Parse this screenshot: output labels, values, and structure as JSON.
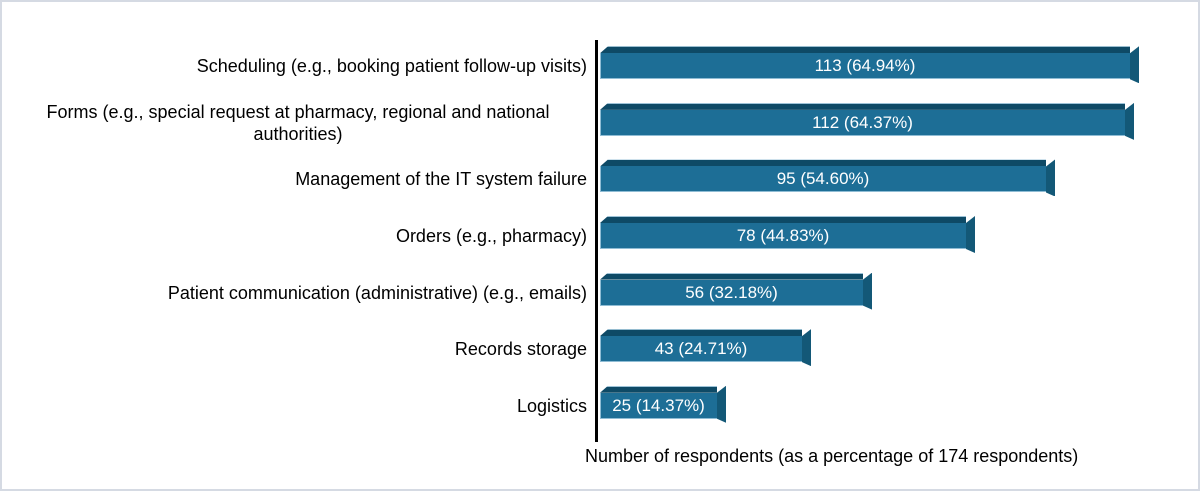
{
  "chart_data": {
    "type": "bar",
    "orientation": "horizontal",
    "title": "",
    "xlabel": "Number of respondents (as a percentage of 174 respondents)",
    "ylabel": "",
    "categories": [
      "Scheduling (e.g., booking patient follow-up visits)",
      "Forms (e.g., special request at pharmacy, regional and national authorities)",
      "Management of the IT system failure",
      "Orders (e.g., pharmacy)",
      "Patient communication (administrative) (e.g., emails)",
      "Records storage",
      "Logistics"
    ],
    "values": [
      113,
      112,
      95,
      78,
      56,
      43,
      25
    ],
    "percentages": [
      64.94,
      64.37,
      54.6,
      44.83,
      32.18,
      24.71,
      14.37
    ],
    "total_respondents": 174,
    "xlim": [
      0,
      113
    ],
    "grid": false,
    "legend": "none",
    "bar_label_format": "{value} ({pct}%)",
    "colors": {
      "bar_front": "#1d6e96",
      "bar_top": "#0e4a66",
      "bar_side": "#135877",
      "bar_highlight": "#a3cadf",
      "value_label": "#ffffff",
      "axis_line": "#000000",
      "text": "#000000",
      "frame_border": "#d5dae3",
      "background": "#ffffff"
    }
  }
}
